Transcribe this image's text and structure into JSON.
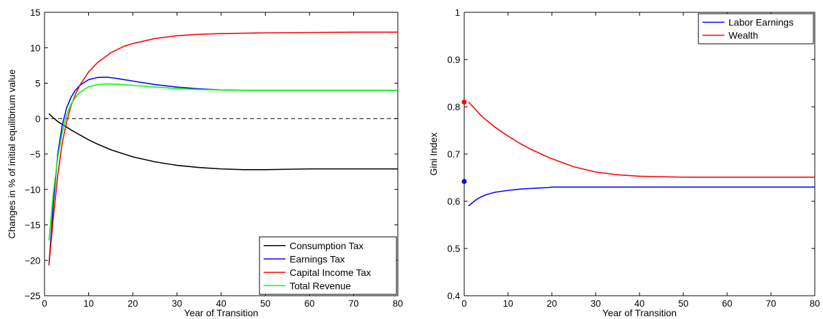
{
  "chart_data": [
    {
      "type": "line",
      "xlabel": "Year of Transition",
      "ylabel": "Changes in % of initial equilibrium value",
      "xlim": [
        0,
        80
      ],
      "ylim": [
        -25,
        15
      ],
      "xticks": [
        0,
        10,
        20,
        30,
        40,
        50,
        60,
        70,
        80
      ],
      "yticks": [
        -25,
        -20,
        -15,
        -10,
        -5,
        0,
        5,
        10,
        15
      ],
      "xtick_labels": [
        "0",
        "10",
        "20",
        "30",
        "40",
        "50",
        "60",
        "70",
        "80"
      ],
      "ytick_labels": [
        "−25",
        "−20",
        "−15",
        "−10",
        "−5",
        "0",
        "5",
        "10",
        "15"
      ],
      "grid": false,
      "legend_position": "bottom-right",
      "reference_line": {
        "y": 0,
        "style": "dashed",
        "color": "#000000"
      },
      "series": [
        {
          "name": "Consumption Tax",
          "color": "#000000",
          "x": [
            1,
            2,
            3,
            4,
            5,
            6,
            8,
            10,
            12,
            15,
            20,
            25,
            30,
            35,
            40,
            45,
            50,
            55,
            60,
            70,
            80
          ],
          "y": [
            0.7,
            0.1,
            -0.4,
            -0.8,
            -1.2,
            -1.6,
            -2.3,
            -3.0,
            -3.6,
            -4.4,
            -5.4,
            -6.1,
            -6.6,
            -6.9,
            -7.1,
            -7.2,
            -7.2,
            -7.15,
            -7.1,
            -7.1,
            -7.1
          ]
        },
        {
          "name": "Earnings Tax",
          "color": "#0000ff",
          "x": [
            1,
            2,
            3,
            4,
            5,
            6,
            7,
            8,
            10,
            12,
            14,
            16,
            18,
            20,
            25,
            30,
            35,
            40,
            45,
            50,
            60,
            70,
            80
          ],
          "y": [
            -20.7,
            -12.0,
            -5.0,
            -1.0,
            1.5,
            3.0,
            4.0,
            4.7,
            5.5,
            5.8,
            5.85,
            5.7,
            5.5,
            5.3,
            4.8,
            4.45,
            4.2,
            4.05,
            4.0,
            4.0,
            4.0,
            4.0,
            4.0
          ]
        },
        {
          "name": "Capital Income Tax",
          "color": "#ff0000",
          "x": [
            1,
            2,
            3,
            4,
            5,
            6,
            7,
            8,
            10,
            12,
            15,
            18,
            20,
            25,
            30,
            35,
            40,
            50,
            60,
            70,
            80
          ],
          "y": [
            -20.7,
            -14.0,
            -8.0,
            -3.5,
            -0.5,
            1.8,
            3.4,
            4.7,
            6.6,
            7.9,
            9.3,
            10.2,
            10.6,
            11.3,
            11.7,
            11.9,
            12.0,
            12.1,
            12.15,
            12.2,
            12.2
          ]
        },
        {
          "name": "Total Revenue",
          "color": "#00ff00",
          "x": [
            1,
            2,
            3,
            4,
            5,
            6,
            7,
            8,
            10,
            12,
            14,
            16,
            18,
            20,
            25,
            30,
            35,
            40,
            45,
            50,
            60,
            70,
            80
          ],
          "y": [
            -17.2,
            -10.5,
            -5.5,
            -2.0,
            0.5,
            2.0,
            3.0,
            3.7,
            4.5,
            4.8,
            4.9,
            4.85,
            4.8,
            4.7,
            4.45,
            4.25,
            4.1,
            4.05,
            4.0,
            4.0,
            4.0,
            4.0,
            4.0
          ]
        }
      ]
    },
    {
      "type": "line",
      "xlabel": "Year of Transition",
      "ylabel": "Gini Index",
      "xlim": [
        0,
        80
      ],
      "ylim": [
        0.4,
        1.0
      ],
      "xticks": [
        0,
        10,
        20,
        30,
        40,
        50,
        60,
        70,
        80
      ],
      "yticks": [
        0.4,
        0.5,
        0.6,
        0.7,
        0.8,
        0.9,
        1.0
      ],
      "xtick_labels": [
        "0",
        "10",
        "20",
        "30",
        "40",
        "50",
        "60",
        "70",
        "80"
      ],
      "ytick_labels": [
        "0.4",
        "0.5",
        "0.6",
        "0.7",
        "0.8",
        "0.9",
        "1"
      ],
      "grid": false,
      "legend_position": "top-right",
      "series": [
        {
          "name": "Labor Earnings",
          "color": "#0000ff",
          "x": [
            1,
            2,
            3,
            4,
            5,
            7,
            10,
            13,
            15,
            17,
            19,
            20,
            25,
            30,
            40,
            50,
            60,
            70,
            80
          ],
          "y": [
            0.59,
            0.598,
            0.605,
            0.61,
            0.614,
            0.619,
            0.623,
            0.626,
            0.627,
            0.628,
            0.629,
            0.63,
            0.63,
            0.63,
            0.63,
            0.63,
            0.63,
            0.63,
            0.63
          ],
          "initial_marker": {
            "x": 0,
            "y": 0.642
          }
        },
        {
          "name": "Wealth",
          "color": "#ff0000",
          "x": [
            1,
            2,
            3,
            4,
            5,
            7,
            10,
            13,
            15,
            18,
            20,
            25,
            30,
            35,
            40,
            45,
            50,
            60,
            70,
            80
          ],
          "y": [
            0.81,
            0.8,
            0.79,
            0.78,
            0.772,
            0.757,
            0.738,
            0.721,
            0.711,
            0.698,
            0.69,
            0.673,
            0.662,
            0.656,
            0.653,
            0.652,
            0.651,
            0.651,
            0.651,
            0.651
          ],
          "initial_marker": {
            "x": 0,
            "y": 0.81
          }
        }
      ]
    }
  ]
}
